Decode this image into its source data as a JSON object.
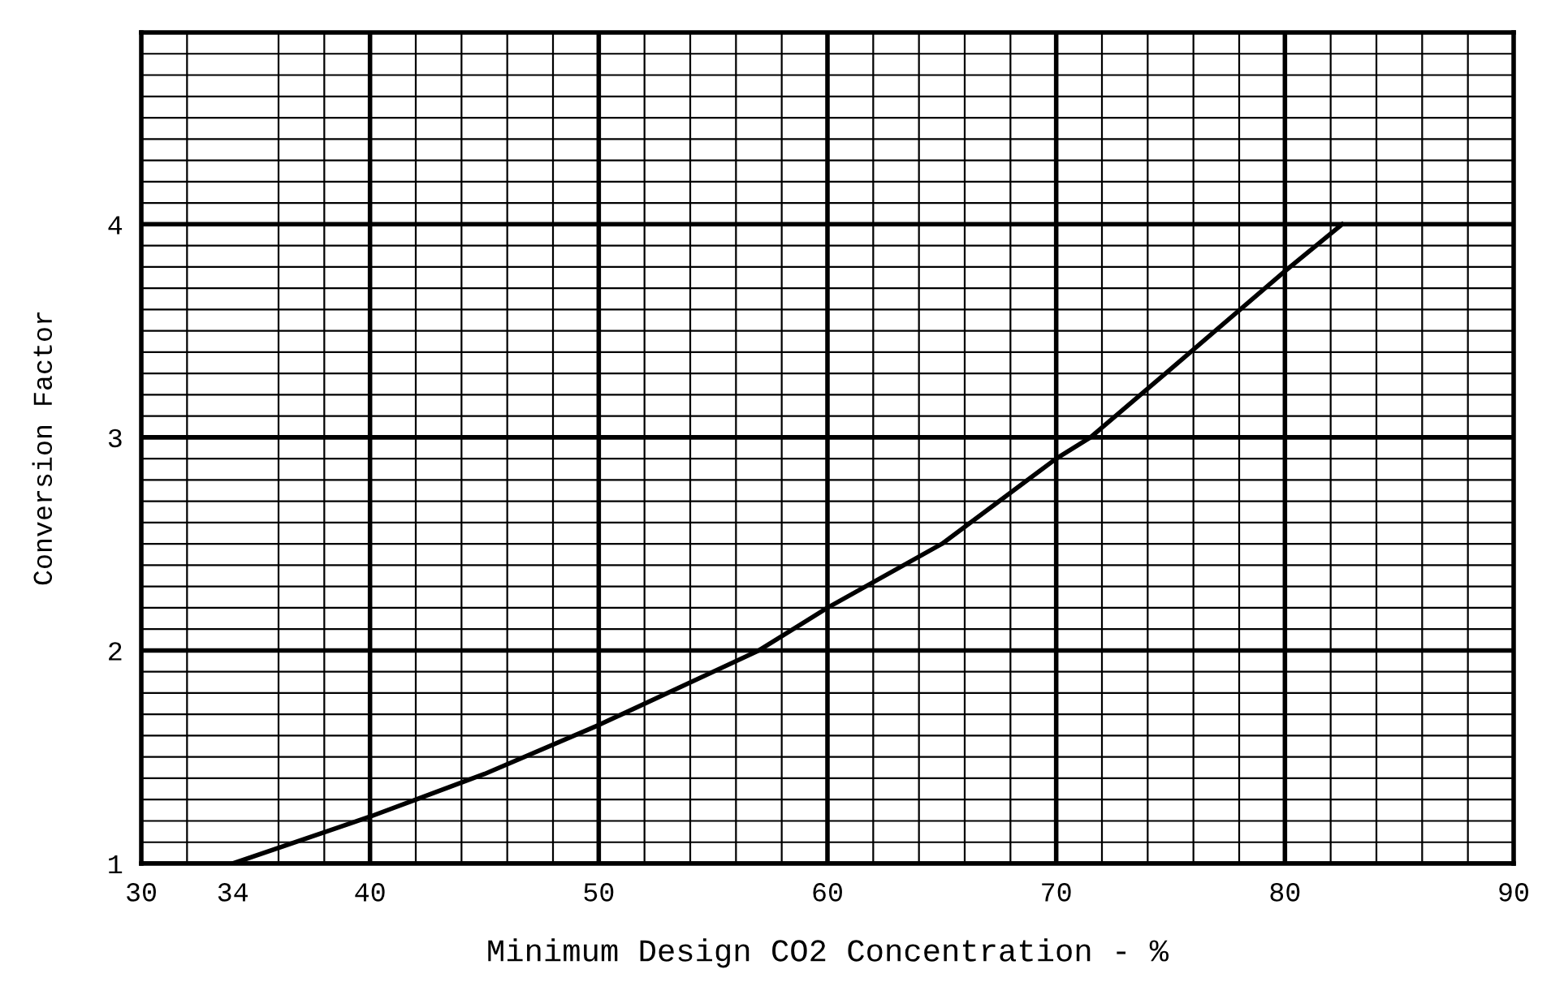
{
  "chart_data": {
    "type": "line",
    "xlabel": "Minimum Design CO2 Concentration - %",
    "ylabel": "Conversion Factor",
    "series": [
      {
        "color": "#000000",
        "x": [
          34,
          40,
          45,
          50,
          55,
          57,
          60,
          65,
          70,
          71.5,
          75,
          80,
          82.5
        ],
        "values": [
          1.0,
          1.22,
          1.42,
          1.65,
          1.9,
          2.0,
          2.2,
          2.5,
          2.9,
          3.0,
          3.32,
          3.78,
          4.0
        ]
      }
    ],
    "xlim": [
      30,
      90
    ],
    "ylim": [
      1,
      4.9
    ],
    "xticks": [
      30,
      34,
      40,
      50,
      60,
      70,
      80,
      90
    ],
    "yticks": [
      1,
      2,
      3,
      4
    ],
    "grid": true,
    "line_style": "solid",
    "marker": "none"
  }
}
